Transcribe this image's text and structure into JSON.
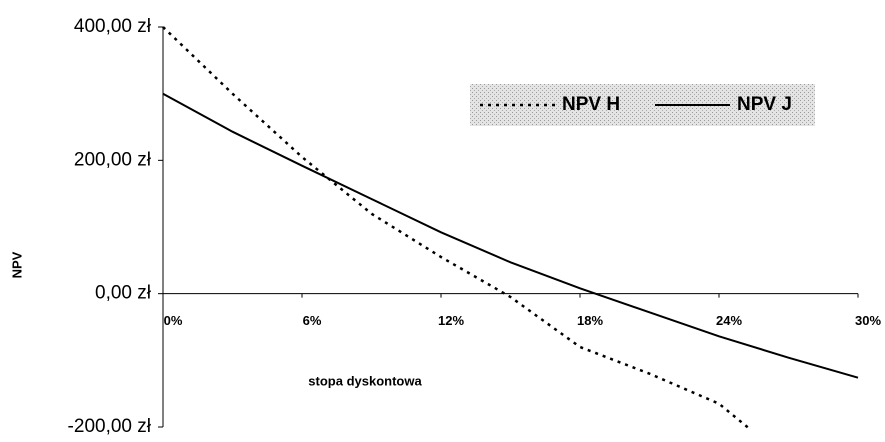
{
  "chart_data": {
    "type": "line",
    "x_label": "stopa dyskontowa",
    "y_label": "NPV",
    "series": [
      {
        "name": "NPV H",
        "color": "#000000",
        "dash": "dotted",
        "x": [
          0,
          3,
          6,
          9,
          12,
          15,
          18,
          21,
          24,
          25.4
        ],
        "values": [
          400,
          300,
          205,
          120,
          55,
          -5,
          -80,
          -120,
          -165,
          -205
        ]
      },
      {
        "name": "NPV J",
        "color": "#000000",
        "dash": "solid",
        "x": [
          0,
          3,
          6,
          9,
          12,
          15,
          18,
          21,
          24,
          27,
          30
        ],
        "values": [
          300,
          243,
          192,
          142,
          92,
          47,
          8,
          -28,
          -64,
          -96,
          -126
        ]
      }
    ],
    "xlim": [
      0,
      30
    ],
    "xticks": [
      {
        "value": 0,
        "label": "0%"
      },
      {
        "value": 6,
        "label": "6%"
      },
      {
        "value": 12,
        "label": "12%"
      },
      {
        "value": 18,
        "label": "18%"
      },
      {
        "value": 24,
        "label": "24%"
      },
      {
        "value": 30,
        "label": "30%"
      }
    ],
    "ylim": [
      -200,
      400
    ],
    "yticks": [
      {
        "value": -200,
        "label": "-200,00 zł"
      },
      {
        "value": 0,
        "label": "0,00 zł"
      },
      {
        "value": 200,
        "label": "200,00 zł"
      },
      {
        "value": 400,
        "label": "400,00 zł"
      }
    ],
    "legend": "top-right"
  }
}
